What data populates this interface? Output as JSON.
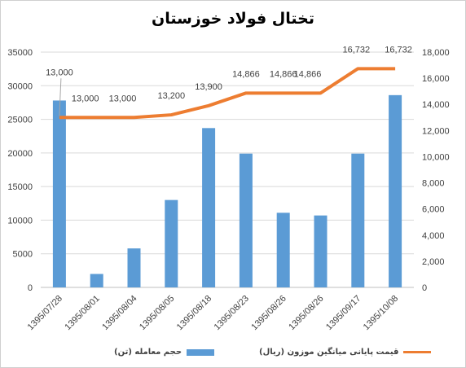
{
  "chart_data": {
    "type": "bar+line",
    "title": "تختال فولاد خوزستان",
    "categories": [
      "1395/07/28",
      "1395/08/01",
      "1395/08/04",
      "1395/08/05",
      "1395/08/18",
      "1395/08/23",
      "1395/08/26",
      "1395/08/26",
      "1395/09/17",
      "1395/10/08"
    ],
    "series": [
      {
        "name": "حجم معامله (تن)",
        "type": "bar",
        "axis": "left",
        "color": "#5b9bd5",
        "values": [
          27800,
          2000,
          5800,
          13000,
          23700,
          19900,
          11100,
          10700,
          19900,
          28600
        ]
      },
      {
        "name": "قیمت پایانی میانگین موزون (ریال)",
        "type": "line",
        "axis": "right",
        "color": "#ed7d31",
        "values": [
          13000,
          13000,
          13000,
          13200,
          13900,
          14866,
          14866,
          14866,
          16732,
          16732
        ],
        "data_labels": [
          "13,000",
          "13,000",
          "13,000",
          "13,200",
          "13,900",
          "14,866",
          "14,866",
          "14,866",
          "16,732",
          "16,732"
        ]
      }
    ],
    "y_left": {
      "ylim": [
        0,
        35000
      ],
      "ticks": [
        "0",
        "5000",
        "10000",
        "15000",
        "20000",
        "25000",
        "30000",
        "35000"
      ]
    },
    "y_right": {
      "ylim": [
        0,
        18000
      ],
      "ticks": [
        "0",
        "2,000",
        "4,000",
        "6,000",
        "8,000",
        "10,000",
        "12,000",
        "14,000",
        "16,000",
        "18,000"
      ]
    },
    "grid": true,
    "legend_position": "bottom"
  }
}
